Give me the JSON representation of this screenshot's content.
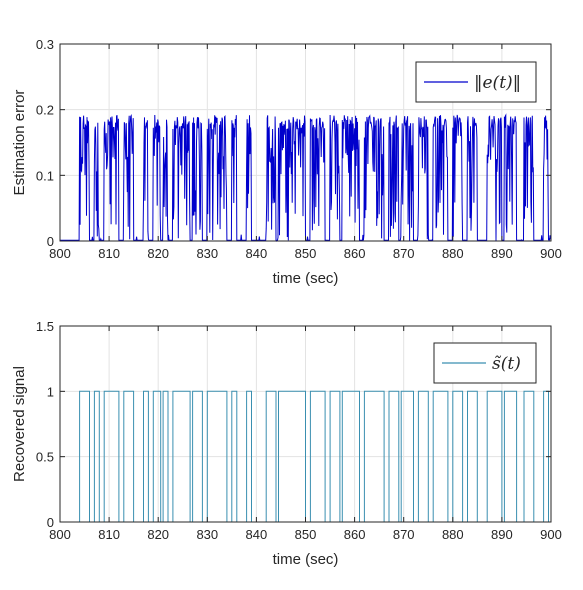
{
  "chart_data": [
    {
      "type": "line",
      "xlabel": "time (sec)",
      "ylabel": "Estimation error",
      "xlim": [
        800,
        900
      ],
      "ylim": [
        0,
        0.3
      ],
      "x_ticks": [
        "800",
        "810",
        "820",
        "830",
        "840",
        "850",
        "860",
        "870",
        "880",
        "890",
        "900"
      ],
      "y_ticks": [
        "0",
        "0.1",
        "0.2",
        "0.3"
      ],
      "grid": true,
      "legend_position": "top-right",
      "legend": [
        "‖e(t)‖"
      ],
      "series": [
        {
          "name": "‖e(t)‖",
          "color": "#0000cc",
          "description": "bursty error signal, ~0.1-0.19 during active intervals, ~0 otherwise",
          "active_intervals": [
            [
              804,
              806
            ],
            [
              807,
              808
            ],
            [
              809,
              812
            ],
            [
              813,
              815
            ],
            [
              817,
              818
            ],
            [
              819,
              820.5
            ],
            [
              821,
              822
            ],
            [
              823,
              826.5
            ],
            [
              827,
              829
            ],
            [
              830,
              834
            ],
            [
              835,
              836
            ],
            [
              838,
              839
            ],
            [
              842,
              844
            ],
            [
              844.5,
              850
            ],
            [
              851,
              854
            ],
            [
              855,
              857
            ],
            [
              857.5,
              861
            ],
            [
              862,
              866
            ],
            [
              867,
              869
            ],
            [
              869.5,
              872
            ],
            [
              873,
              875
            ],
            [
              876,
              879
            ],
            [
              880,
              882
            ],
            [
              883,
              885
            ],
            [
              887,
              890
            ],
            [
              890.5,
              893
            ],
            [
              894.5,
              896.5
            ],
            [
              898.5,
              899.5
            ]
          ]
        }
      ]
    },
    {
      "type": "line",
      "xlabel": "time (sec)",
      "ylabel": "Recovered signal",
      "xlim": [
        800,
        900
      ],
      "ylim": [
        0,
        1.5
      ],
      "x_ticks": [
        "800",
        "810",
        "820",
        "830",
        "840",
        "850",
        "860",
        "870",
        "880",
        "890",
        "900"
      ],
      "y_ticks": [
        "0",
        "0.5",
        "1",
        "1.5"
      ],
      "grid": true,
      "legend_position": "top-right",
      "legend": [
        "s̃(t)"
      ],
      "series": [
        {
          "name": "s̃(t)",
          "color": "#3a8fb0",
          "description": "binary square wave switching between 0 and 1",
          "high_intervals": [
            [
              804,
              806
            ],
            [
              807,
              808
            ],
            [
              809,
              812
            ],
            [
              813,
              815
            ],
            [
              817,
              818
            ],
            [
              819,
              820.5
            ],
            [
              821,
              822
            ],
            [
              823,
              826.5
            ],
            [
              827,
              829
            ],
            [
              830,
              834
            ],
            [
              835,
              836
            ],
            [
              838,
              839
            ],
            [
              842,
              844
            ],
            [
              844.5,
              850
            ],
            [
              851,
              854
            ],
            [
              855,
              857
            ],
            [
              857.5,
              861
            ],
            [
              862,
              866
            ],
            [
              867,
              869
            ],
            [
              869.5,
              872
            ],
            [
              873,
              875
            ],
            [
              876,
              879
            ],
            [
              880,
              882
            ],
            [
              883,
              885
            ],
            [
              887,
              890
            ],
            [
              890.5,
              893
            ],
            [
              894.5,
              896.5
            ],
            [
              898.5,
              899.5
            ]
          ]
        }
      ]
    }
  ]
}
